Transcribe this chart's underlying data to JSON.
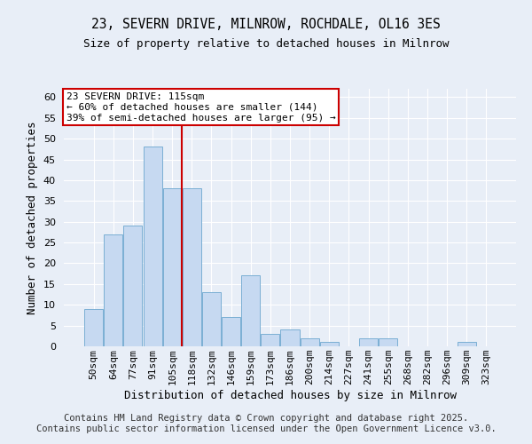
{
  "title1": "23, SEVERN DRIVE, MILNROW, ROCHDALE, OL16 3ES",
  "title2": "Size of property relative to detached houses in Milnrow",
  "xlabel": "Distribution of detached houses by size in Milnrow",
  "ylabel": "Number of detached properties",
  "categories": [
    "50sqm",
    "64sqm",
    "77sqm",
    "91sqm",
    "105sqm",
    "118sqm",
    "132sqm",
    "146sqm",
    "159sqm",
    "173sqm",
    "186sqm",
    "200sqm",
    "214sqm",
    "227sqm",
    "241sqm",
    "255sqm",
    "268sqm",
    "282sqm",
    "296sqm",
    "309sqm",
    "323sqm"
  ],
  "values": [
    9,
    27,
    29,
    48,
    38,
    38,
    13,
    7,
    17,
    3,
    4,
    2,
    1,
    0,
    2,
    2,
    0,
    0,
    0,
    1,
    0
  ],
  "bar_color": "#c6d9f1",
  "bar_edge_color": "#7bafd4",
  "vline_x": 4.5,
  "vline_color": "#cc0000",
  "annotation_text": "23 SEVERN DRIVE: 115sqm\n← 60% of detached houses are smaller (144)\n39% of semi-detached houses are larger (95) →",
  "annotation_box_color": "#ffffff",
  "annotation_box_edge": "#cc0000",
  "annotation_fontsize": 8,
  "background_color": "#e8eef7",
  "plot_bg_color": "#e8eef7",
  "footer_text": "Contains HM Land Registry data © Crown copyright and database right 2025.\nContains public sector information licensed under the Open Government Licence v3.0.",
  "ylim": [
    0,
    62
  ],
  "yticks": [
    0,
    5,
    10,
    15,
    20,
    25,
    30,
    35,
    40,
    45,
    50,
    55,
    60
  ],
  "title_fontsize": 10.5,
  "subtitle_fontsize": 9,
  "axis_label_fontsize": 9,
  "tick_fontsize": 8,
  "footer_fontsize": 7.5
}
